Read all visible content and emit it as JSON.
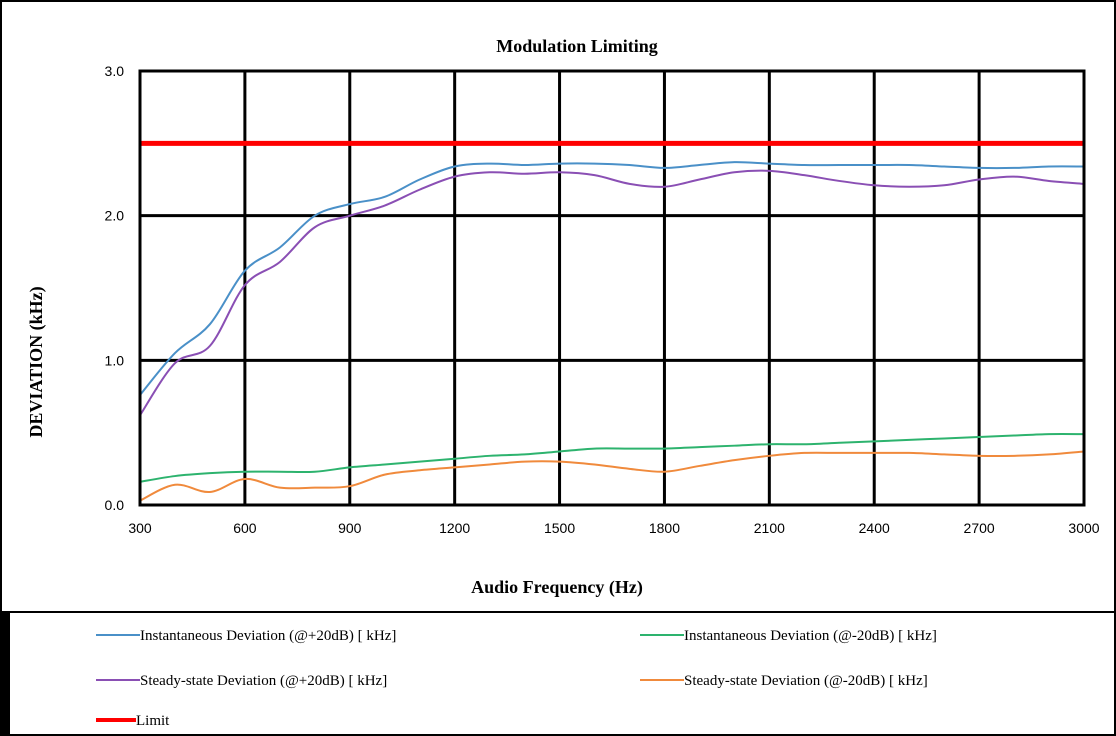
{
  "chart_data": {
    "type": "line",
    "title": "Modulation Limiting",
    "xlabel": "Audio Frequency (Hz)",
    "ylabel": "DEVIATION (kHz)",
    "xlim": [
      300,
      3000
    ],
    "ylim": [
      0.0,
      3.0
    ],
    "x_ticks": [
      "300",
      "600",
      "900",
      "1200",
      "1500",
      "1800",
      "2100",
      "2400",
      "2700",
      "3000"
    ],
    "y_ticks": [
      "0.0",
      "1.0",
      "2.0",
      "3.0"
    ],
    "grid": true,
    "legend_position": "bottom",
    "x": [
      300,
      400,
      500,
      600,
      700,
      800,
      900,
      1000,
      1100,
      1200,
      1300,
      1400,
      1500,
      1600,
      1700,
      1800,
      1900,
      2000,
      2100,
      2200,
      2300,
      2400,
      2500,
      2600,
      2700,
      2800,
      2900,
      3000
    ],
    "series": [
      {
        "name": "Instantaneous Deviation (@+20dB) [ kHz]",
        "color": "#4a90c8",
        "values": [
          0.76,
          1.05,
          1.25,
          1.62,
          1.78,
          2.0,
          2.08,
          2.13,
          2.25,
          2.34,
          2.36,
          2.35,
          2.36,
          2.36,
          2.35,
          2.33,
          2.35,
          2.37,
          2.36,
          2.35,
          2.35,
          2.35,
          2.35,
          2.34,
          2.33,
          2.33,
          2.34,
          2.34
        ]
      },
      {
        "name": "Instantaneous Deviation (@-20dB) [ kHz]",
        "color": "#2db36e",
        "values": [
          0.16,
          0.2,
          0.22,
          0.23,
          0.23,
          0.23,
          0.26,
          0.28,
          0.3,
          0.32,
          0.34,
          0.35,
          0.37,
          0.39,
          0.39,
          0.39,
          0.4,
          0.41,
          0.42,
          0.42,
          0.43,
          0.44,
          0.45,
          0.46,
          0.47,
          0.48,
          0.49,
          0.49
        ]
      },
      {
        "name": "Steady-state Deviation (@+20dB) [ kHz]",
        "color": "#8a4fb4",
        "values": [
          0.62,
          0.98,
          1.1,
          1.52,
          1.68,
          1.92,
          2.0,
          2.07,
          2.18,
          2.27,
          2.3,
          2.29,
          2.3,
          2.28,
          2.22,
          2.2,
          2.25,
          2.3,
          2.31,
          2.28,
          2.24,
          2.21,
          2.2,
          2.21,
          2.25,
          2.27,
          2.24,
          2.22
        ]
      },
      {
        "name": "Steady-state Deviation (@-20dB) [ kHz]",
        "color": "#f08a3c",
        "values": [
          0.03,
          0.14,
          0.09,
          0.18,
          0.12,
          0.12,
          0.13,
          0.21,
          0.24,
          0.26,
          0.28,
          0.3,
          0.3,
          0.28,
          0.25,
          0.23,
          0.27,
          0.31,
          0.34,
          0.36,
          0.36,
          0.36,
          0.36,
          0.35,
          0.34,
          0.34,
          0.35,
          0.37
        ]
      },
      {
        "name": "Limit",
        "color": "#ff0000",
        "values": [
          2.5,
          2.5,
          2.5,
          2.5,
          2.5,
          2.5,
          2.5,
          2.5,
          2.5,
          2.5,
          2.5,
          2.5,
          2.5,
          2.5,
          2.5,
          2.5,
          2.5,
          2.5,
          2.5,
          2.5,
          2.5,
          2.5,
          2.5,
          2.5,
          2.5,
          2.5,
          2.5,
          2.5
        ]
      }
    ]
  }
}
